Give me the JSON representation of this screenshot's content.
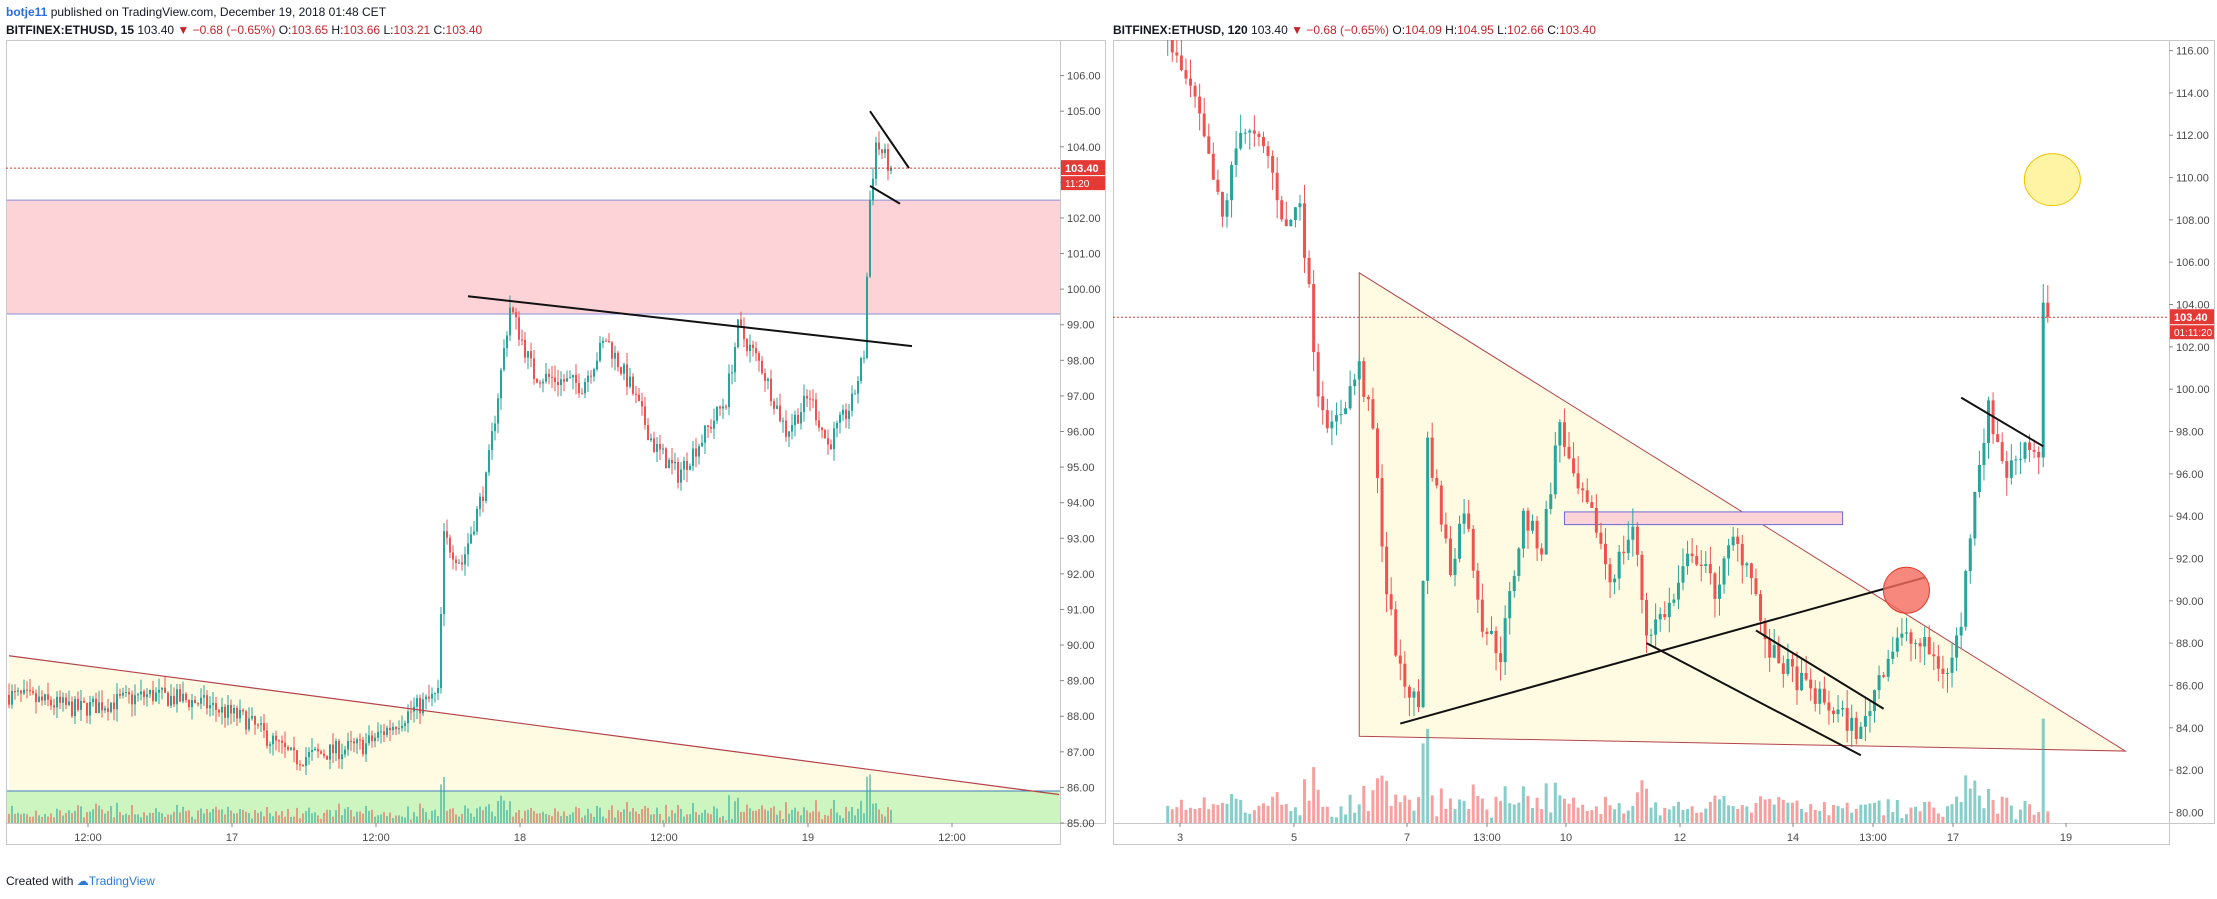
{
  "header": {
    "author": "botje11",
    "published": "published on TradingView.com, December 19, 2018 01:48 CET"
  },
  "footer": {
    "created_with": "Created with",
    "brand": "TradingView"
  },
  "left": {
    "symbol": "BITFINEX:ETHUSD, 15",
    "last": "103.40",
    "change": "▼ −0.68 (−0.65%)",
    "o_label": "O:",
    "o": "103.65",
    "h_label": "H:",
    "h": "103.66",
    "l_label": "L:",
    "l": "103.21",
    "c_label": "C:",
    "c": "103.40",
    "price_badge": "103.40",
    "countdown": "11:20"
  },
  "right": {
    "symbol": "BITFINEX:ETHUSD, 120",
    "last": "103.40",
    "change": "▼ −0.68 (−0.65%)",
    "o_label": "O:",
    "o": "104.09",
    "h_label": "H:",
    "h": "104.95",
    "l_label": "L:",
    "l": "102.66",
    "c_label": "C:",
    "c": "103.40",
    "price_badge": "103.40",
    "countdown": "01:11:20"
  },
  "chart_data": [
    {
      "type": "candlestick",
      "symbol": "BITFINEX:ETHUSD",
      "interval": "15",
      "ylim": [
        85,
        107
      ],
      "yticks": [
        85,
        86,
        87,
        88,
        89,
        90,
        91,
        92,
        93,
        94,
        95,
        96,
        97,
        98,
        99,
        100,
        101,
        102,
        103,
        104,
        105,
        106
      ],
      "xticks": [
        "12:00",
        "17",
        "12:00",
        "18",
        "12:00",
        "19",
        "12:00"
      ],
      "last_price": 103.4,
      "resistance_zone": [
        99.3,
        102.5
      ],
      "volume_zone_color": "#ccf5c0",
      "trendlines": [
        {
          "from": [
            "16 00:15",
            89.7
          ],
          "to": [
            "19 15:45",
            85.8
          ]
        },
        {
          "from": [
            "17 14:30",
            99.8
          ],
          "to": [
            "19 03:30",
            98.4
          ]
        }
      ],
      "pennant_lines": [
        {
          "from": [
            "19 00:00",
            105.0
          ],
          "to": [
            "19 03:15",
            103.4
          ]
        },
        {
          "from": [
            "19 00:00",
            102.9
          ],
          "to": [
            "19 02:30",
            102.4
          ]
        }
      ],
      "price_path": [
        [
          "16 00:15",
          88.6
        ],
        [
          "16 06:00",
          88.2
        ],
        [
          "16 12:00",
          88.6
        ],
        [
          "16 16:00",
          88.4
        ],
        [
          "16 20:00",
          87.9
        ],
        [
          "17 00:00",
          86.8
        ],
        [
          "17 06:00",
          87.2
        ],
        [
          "17 10:00",
          88.2
        ],
        [
          "17 12:00",
          88.6
        ],
        [
          "17 12:30",
          93.0
        ],
        [
          "17 14:00",
          92.3
        ],
        [
          "17 16:00",
          94.6
        ],
        [
          "17 18:00",
          99.5
        ],
        [
          "17 20:00",
          97.6
        ],
        [
          "18 00:00",
          97.3
        ],
        [
          "18 02:00",
          98.6
        ],
        [
          "18 04:00",
          97.3
        ],
        [
          "18 06:00",
          95.6
        ],
        [
          "18 08:00",
          94.8
        ],
        [
          "18 10:00",
          95.8
        ],
        [
          "18 12:00",
          96.9
        ],
        [
          "18 13:00",
          98.9
        ],
        [
          "18 15:00",
          97.8
        ],
        [
          "18 17:00",
          96.0
        ],
        [
          "18 19:00",
          97.0
        ],
        [
          "18 20:30",
          95.6
        ],
        [
          "18 22:30",
          96.8
        ],
        [
          "18 23:30",
          98.2
        ],
        [
          "19 00:00",
          102.5
        ],
        [
          "19 00:30",
          104.1
        ],
        [
          "19 01:45",
          103.4
        ]
      ]
    },
    {
      "type": "candlestick",
      "symbol": "BITFINEX:ETHUSD",
      "interval": "120",
      "ylim": [
        79.5,
        116.5
      ],
      "yticks": [
        80,
        82,
        84,
        86,
        88,
        90,
        92,
        94,
        96,
        98,
        100,
        102,
        104,
        106,
        108,
        110,
        112,
        114,
        116
      ],
      "xticks": [
        "3",
        "5",
        "7",
        "13:00",
        "10",
        "12",
        "14",
        "13:00",
        "17",
        "19"
      ],
      "last_price": 103.4,
      "triangle": {
        "apex_top": [
          "6 12:00",
          105.5
        ],
        "apex_right": [
          "20 12:00",
          82.9
        ],
        "base_left": [
          "6 12:00",
          83.6
        ]
      },
      "resistance_box": [
        93.6,
        94.2
      ],
      "trendlines": [
        {
          "from": [
            "7 06:00",
            84.2
          ],
          "to": [
            "16 20:00",
            91.1
          ]
        },
        {
          "from": [
            "11 18:00",
            88.0
          ],
          "to": [
            "15 16:00",
            82.7
          ]
        },
        {
          "from": [
            "13 18:00",
            88.6
          ],
          "to": [
            "16 02:00",
            84.9
          ]
        },
        {
          "from": [
            "17 12:00",
            99.6
          ],
          "to": [
            "19 00:00",
            97.3
          ]
        }
      ],
      "markers": [
        {
          "shape": "circle",
          "color": "#f46a5e",
          "at": [
            "16 12:00",
            90.5
          ]
        },
        {
          "shape": "circle",
          "color": "#fff29a",
          "at": [
            "19 04:00",
            109.9
          ]
        }
      ],
      "price_path": [
        [
          "3 00:00",
          116.5
        ],
        [
          "3 12:00",
          113.5
        ],
        [
          "4 00:00",
          108.0
        ],
        [
          "4 08:00",
          112.5
        ],
        [
          "4 20:00",
          111.0
        ],
        [
          "5 04:00",
          107.5
        ],
        [
          "5 10:00",
          109.0
        ],
        [
          "5 18:00",
          100.0
        ],
        [
          "6 00:00",
          98.0
        ],
        [
          "6 12:00",
          101.0
        ],
        [
          "6 18:00",
          98.0
        ],
        [
          "7 00:00",
          90.5
        ],
        [
          "7 06:00",
          86.5
        ],
        [
          "7 14:00",
          85.0
        ],
        [
          "7 18:00",
          97.5
        ],
        [
          "8 04:00",
          91.5
        ],
        [
          "8 10:00",
          94.5
        ],
        [
          "8 18:00",
          89.0
        ],
        [
          "9 02:00",
          87.5
        ],
        [
          "9 12:00",
          94.0
        ],
        [
          "9 20:00",
          92.5
        ],
        [
          "10 04:00",
          98.5
        ],
        [
          "10 10:00",
          95.5
        ],
        [
          "10 20:00",
          93.5
        ],
        [
          "11 02:00",
          91.0
        ],
        [
          "11 12:00",
          93.5
        ],
        [
          "11 18:00",
          88.5
        ],
        [
          "12 06:00",
          90.0
        ],
        [
          "12 14:00",
          92.5
        ],
        [
          "13 00:00",
          90.5
        ],
        [
          "13 08:00",
          92.8
        ],
        [
          "13 16:00",
          91.5
        ],
        [
          "13 22:00",
          87.8
        ],
        [
          "14 10:00",
          86.5
        ],
        [
          "14 20:00",
          85.5
        ],
        [
          "15 08:00",
          84.5
        ],
        [
          "15 16:00",
          83.7
        ],
        [
          "16 00:00",
          86.5
        ],
        [
          "16 08:00",
          88.3
        ],
        [
          "16 20:00",
          87.8
        ],
        [
          "17 06:00",
          86.5
        ],
        [
          "17 12:00",
          89.0
        ],
        [
          "17 18:00",
          95.5
        ],
        [
          "18 00:00",
          99.0
        ],
        [
          "18 08:00",
          96.0
        ],
        [
          "18 16:00",
          97.5
        ],
        [
          "18 22:00",
          97.0
        ],
        [
          "19 00:00",
          104.0
        ],
        [
          "19 02:00",
          103.4
        ]
      ]
    }
  ],
  "colors": {
    "up": "#26a69a",
    "down": "#ef5350",
    "price_line": "#e53935",
    "zone_fill": "#fdd3d7",
    "zone_border": "#8a8fd8",
    "triangle_fill": "#fffbe2",
    "triangle_line": "#b4434b",
    "axis_text": "#4a4a4a"
  }
}
